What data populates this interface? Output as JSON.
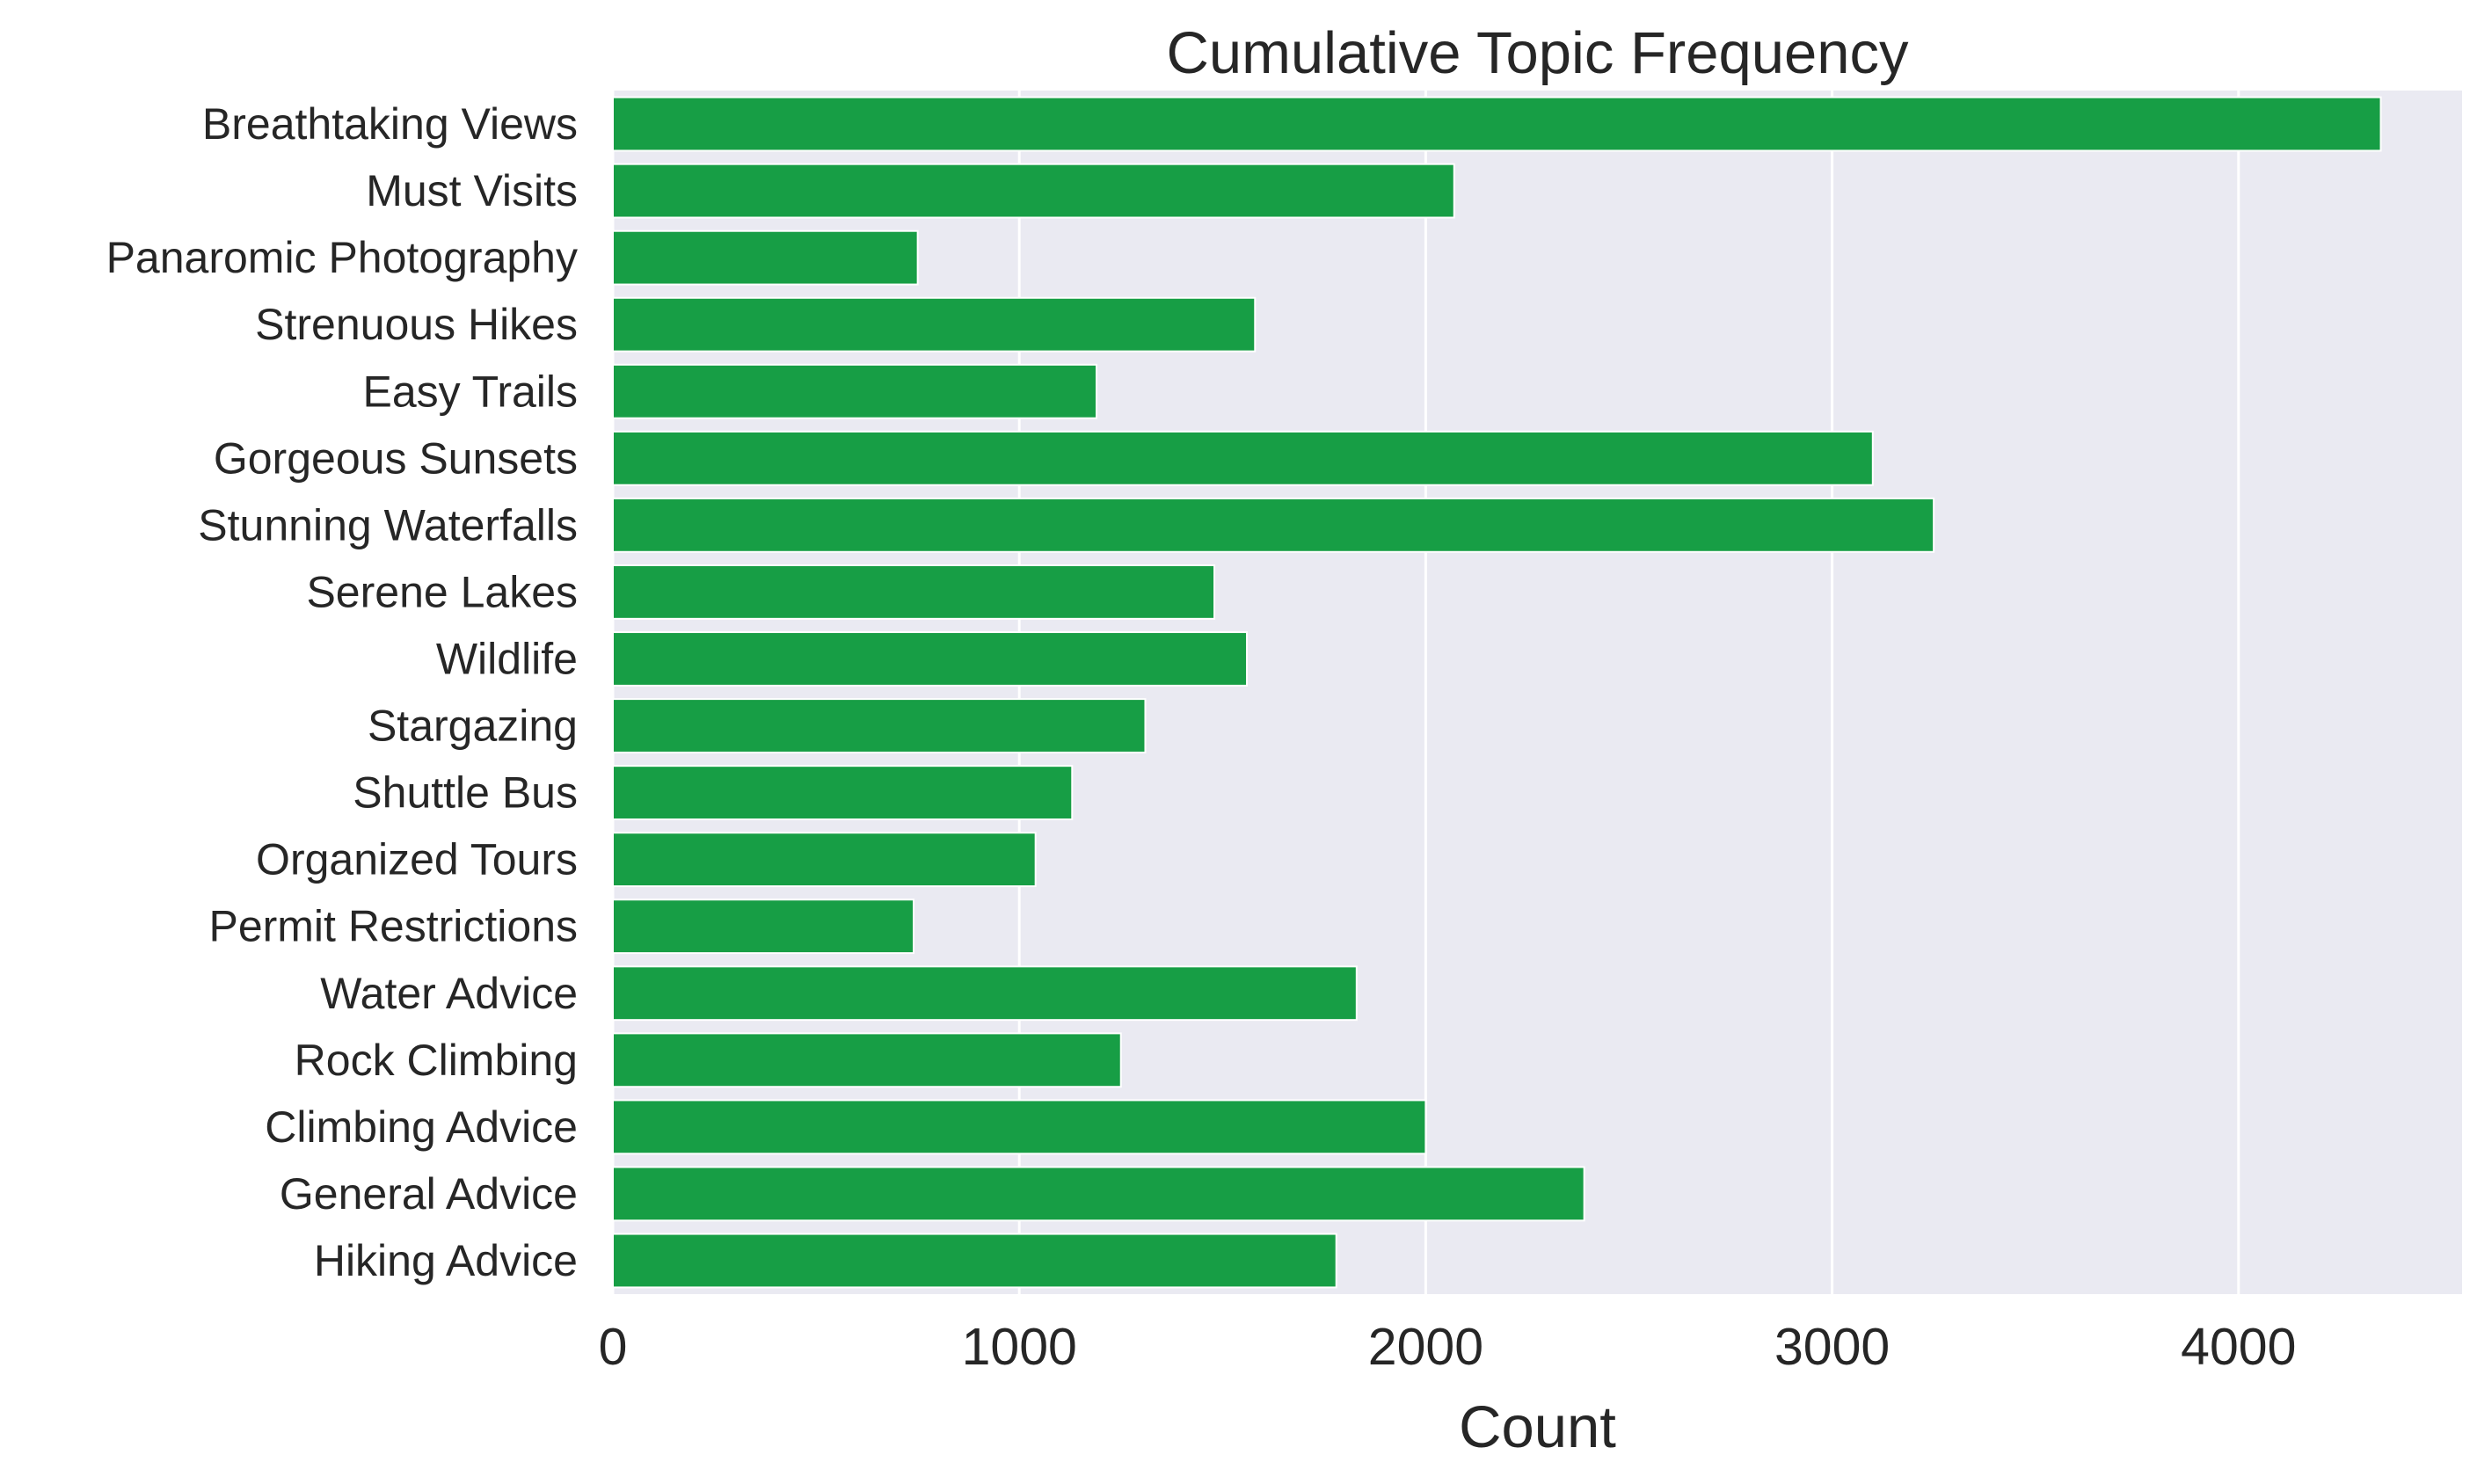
{
  "chart_data": {
    "type": "bar",
    "orientation": "horizontal",
    "title": "Cumulative Topic Frequency",
    "xlabel": "Count",
    "ylabel": "",
    "categories": [
      "Breathtaking Views",
      "Must Visits",
      "Panaromic Photography",
      "Strenuous Hikes",
      "Easy Trails",
      "Gorgeous Sunsets",
      "Stunning Waterfalls",
      "Serene Lakes",
      "Wildlife",
      "Stargazing",
      "Shuttle Bus",
      "Organized Tours",
      "Permit Restrictions",
      "Water Advice",
      "Rock Climbing",
      "Climbing Advice",
      "General Advice",
      "Hiking Advice"
    ],
    "values": [
      4350,
      2070,
      750,
      1580,
      1190,
      3100,
      3250,
      1480,
      1560,
      1310,
      1130,
      1040,
      740,
      1830,
      1250,
      2000,
      2390,
      1780
    ],
    "xlim": [
      0,
      4550
    ],
    "xticks": [
      0,
      1000,
      2000,
      3000,
      4000
    ],
    "xtick_labels": [
      "0",
      "1000",
      "2000",
      "3000",
      "4000"
    ],
    "grid": true,
    "colors": {
      "bar": "#179e45",
      "plot_background": "#eaeaf2",
      "grid": "#ffffff",
      "text": "#262626"
    }
  }
}
